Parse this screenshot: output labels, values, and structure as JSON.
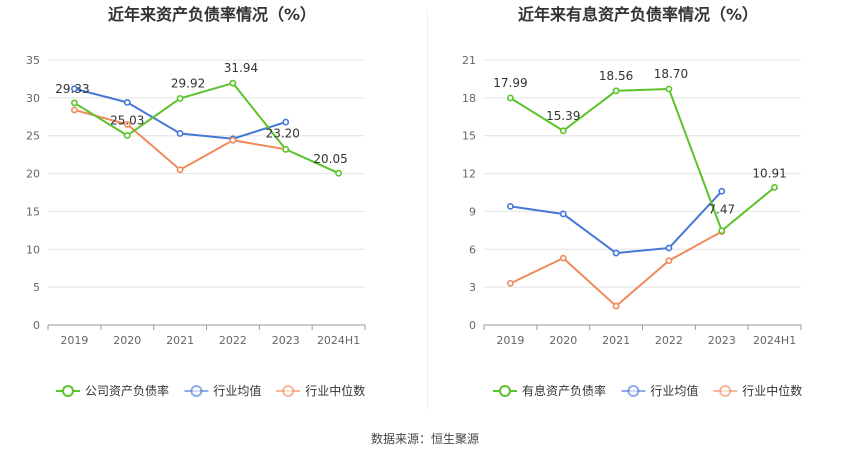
{
  "chart_data": [
    {
      "type": "line",
      "title": "近年来资产负债率情况（%）",
      "categories": [
        "2019",
        "2020",
        "2021",
        "2022",
        "2023",
        "2024H1"
      ],
      "ylim": [
        0,
        35
      ],
      "yticks": [
        0,
        5,
        10,
        15,
        20,
        25,
        30,
        35
      ],
      "grid": true,
      "legend_position": "bottom",
      "series": [
        {
          "name": "公司资产负债率",
          "color": "#5ac42a",
          "labeled": true,
          "values": [
            29.33,
            25.03,
            29.92,
            31.94,
            23.2,
            20.05
          ]
        },
        {
          "name": "行业均值",
          "color": "#4678d6",
          "labeled": false,
          "values": [
            31.2,
            29.4,
            25.3,
            24.6,
            26.8,
            null
          ]
        },
        {
          "name": "行业中位数",
          "color": "#f08a5d",
          "labeled": false,
          "values": [
            28.4,
            26.5,
            20.5,
            24.4,
            23.2,
            null
          ]
        }
      ],
      "data_labels": [
        "29.33",
        "25.03",
        "29.92",
        "31.94",
        "23.20",
        "20.05"
      ]
    },
    {
      "type": "line",
      "title": "近年来有息资产负债率情况（%）",
      "categories": [
        "2019",
        "2020",
        "2021",
        "2022",
        "2023",
        "2024H1"
      ],
      "ylim": [
        0,
        21
      ],
      "yticks": [
        0,
        3,
        6,
        9,
        12,
        15,
        18,
        21
      ],
      "grid": true,
      "legend_position": "bottom",
      "series": [
        {
          "name": "有息资产负债率",
          "color": "#5ac42a",
          "labeled": true,
          "values": [
            17.99,
            15.39,
            18.56,
            18.7,
            7.47,
            10.91
          ]
        },
        {
          "name": "行业均值",
          "color": "#4678d6",
          "labeled": false,
          "values": [
            9.4,
            8.8,
            5.7,
            6.1,
            10.6,
            null
          ]
        },
        {
          "name": "行业中位数",
          "color": "#f08a5d",
          "labeled": false,
          "values": [
            3.3,
            5.3,
            1.5,
            5.1,
            7.4,
            null
          ]
        }
      ],
      "data_labels": [
        "17.99",
        "15.39",
        "18.56",
        "18.70",
        "7.47",
        "10.91"
      ]
    }
  ],
  "source_text": "数据来源：恒生聚源"
}
